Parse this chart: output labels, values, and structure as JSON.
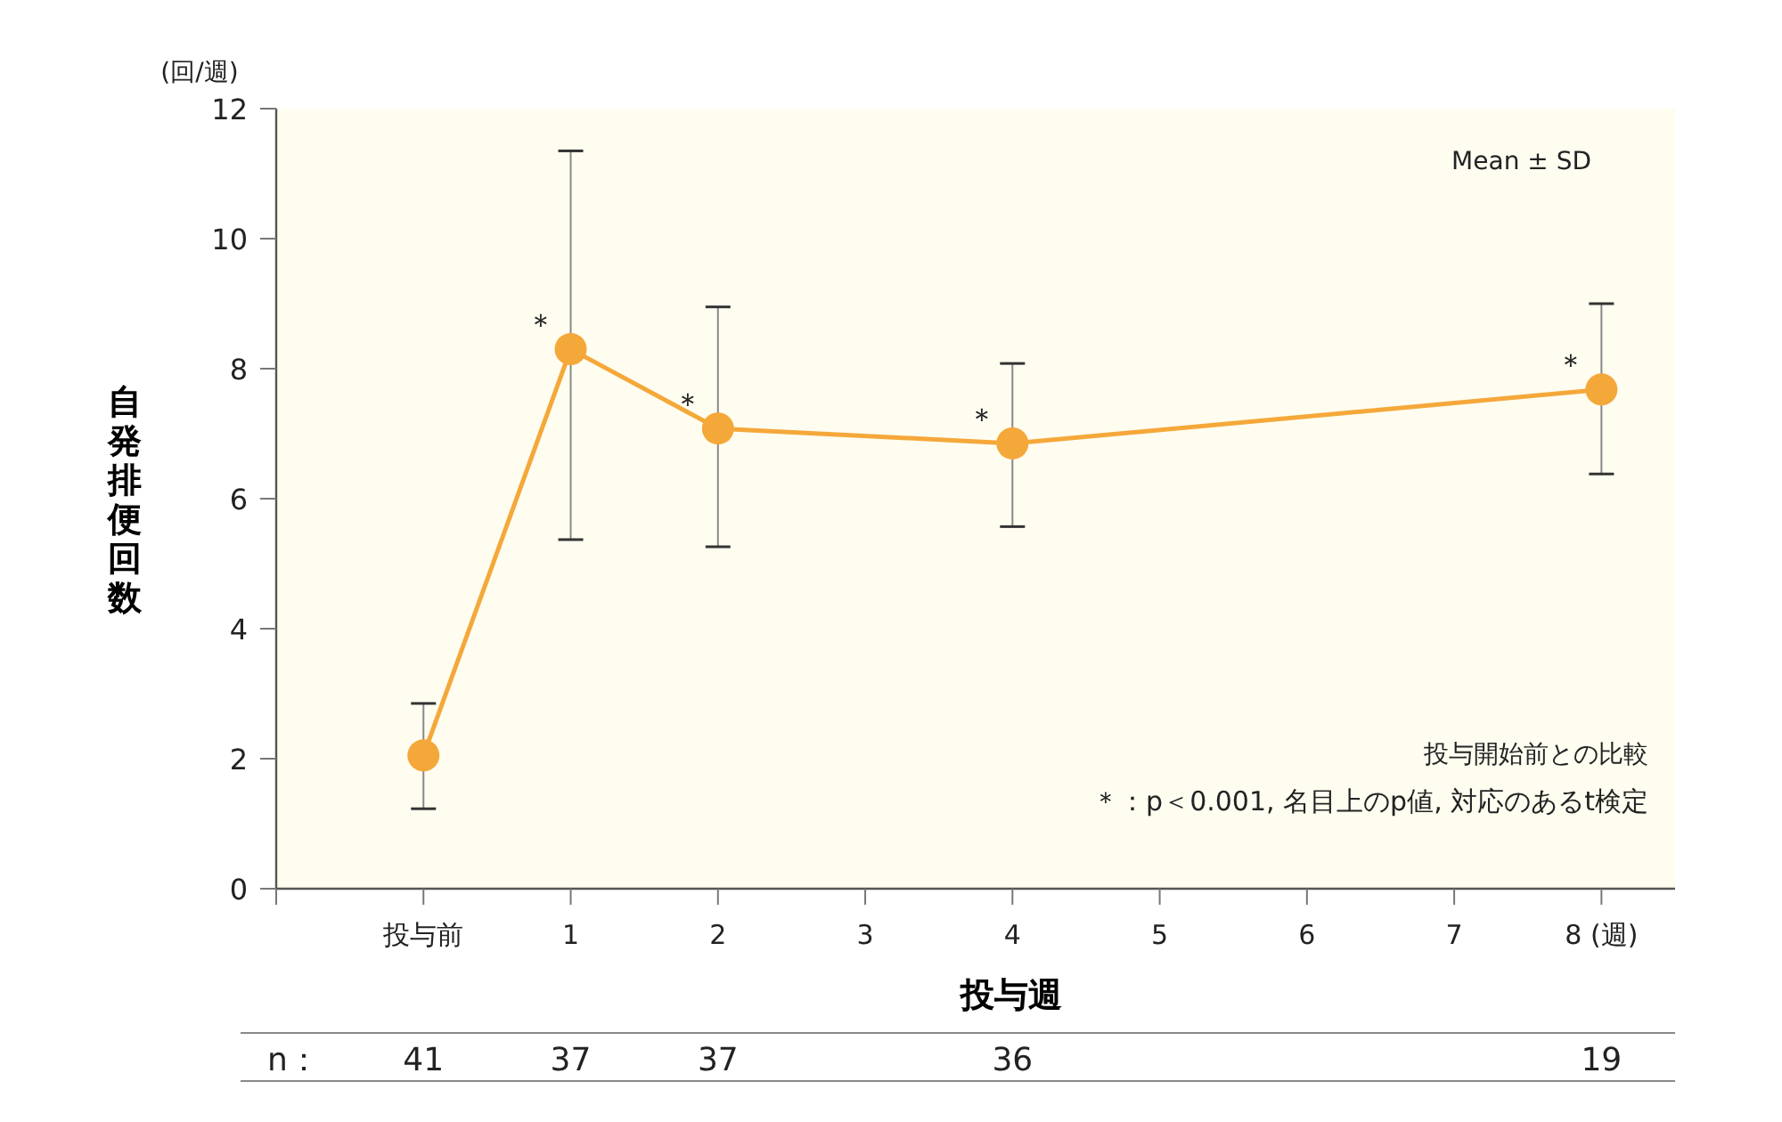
{
  "chart_data": {
    "type": "line",
    "xlabel": "投与週",
    "ylabel": "自発排便回数",
    "x": [
      0,
      1,
      2,
      4,
      8
    ],
    "series": [
      {
        "color": "#f5a83a",
        "values": [
          2.05,
          8.3,
          7.08,
          6.85,
          7.68
        ],
        "errors": [
          [
            1.23,
            2.85
          ],
          [
            5.37,
            11.35
          ],
          [
            5.26,
            8.95
          ],
          [
            5.57,
            8.08
          ],
          [
            6.38,
            9.0
          ]
        ]
      }
    ],
    "xlim": [
      -1,
      8.5
    ],
    "xticks": [
      {
        "value": -1,
        "label": null
      },
      {
        "value": 0,
        "label": "投与前"
      },
      1,
      2,
      3,
      4,
      5,
      6,
      7,
      {
        "value": 8,
        "label": "8 (週)"
      }
    ],
    "ylim": [
      0,
      12
    ],
    "yticks": [
      0,
      2,
      4,
      6,
      8,
      10,
      12
    ],
    "grid": false,
    "marker": "circle",
    "line_style": "solid",
    "annotations": [
      "(回/週)",
      "Mean ± SD",
      "投与開始前との比較",
      "＊：p＜0.001, 名目上のp値, 対応のあるt検定",
      {
        "text": "＊",
        "x": 1,
        "y": 8.3
      },
      {
        "text": "＊",
        "x": 2,
        "y": 7.08
      },
      {
        "text": "＊",
        "x": 4,
        "y": 6.85
      },
      {
        "text": "＊",
        "x": 8,
        "y": 7.68
      },
      "n：",
      "41",
      "37",
      "37",
      "36",
      "19"
    ]
  }
}
